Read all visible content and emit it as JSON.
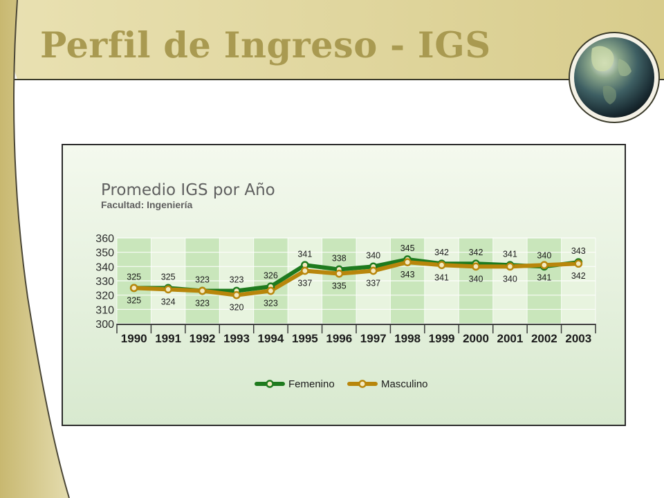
{
  "slide": {
    "title": "Perfil de Ingreso - IGS"
  },
  "chart_data": {
    "type": "line",
    "title": "Promedio IGS por Año",
    "subtitle": "Facultad: Ingeniería",
    "categories": [
      "1990",
      "1991",
      "1992",
      "1993",
      "1994",
      "1995",
      "1996",
      "1997",
      "1998",
      "1999",
      "2000",
      "2001",
      "2002",
      "2003"
    ],
    "series": [
      {
        "name": "Femenino",
        "color": "#1e7a1e",
        "values": [
          325,
          325,
          323,
          323,
          326,
          341,
          338,
          340,
          345,
          342,
          342,
          341,
          340,
          343
        ]
      },
      {
        "name": "Masculino",
        "color": "#b8860b",
        "values": [
          325,
          324,
          323,
          320,
          323,
          337,
          335,
          337,
          343,
          341,
          340,
          340,
          341,
          342
        ]
      }
    ],
    "ylim": [
      300,
      360
    ],
    "yticks": [
      300,
      310,
      320,
      330,
      340,
      350,
      360
    ],
    "grid": true,
    "legend": "bottom",
    "xlabel": "",
    "ylabel": ""
  }
}
